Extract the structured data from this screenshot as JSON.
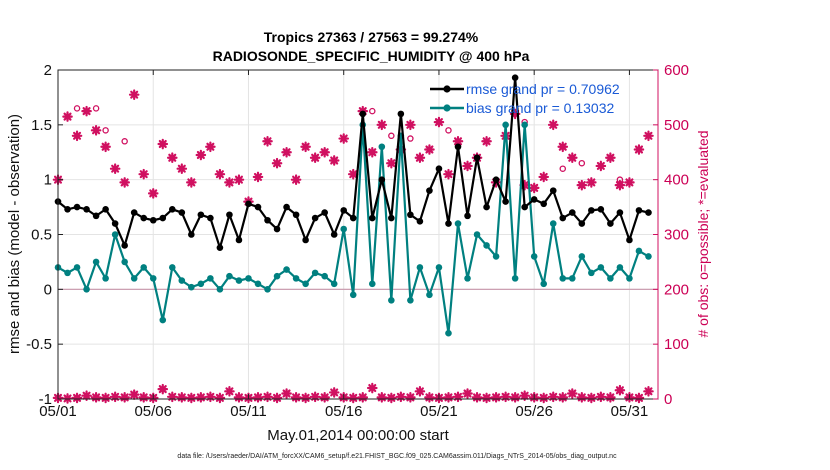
{
  "title_line1": "Tropics 27363 / 27563 = 99.274%",
  "title_line2": "RADIOSONDE_SPECIFIC_HUMIDITY @ 400 hPa",
  "footer": "data file: /Users/raeder/DAI/ATM_forcXX/CAM6_setup/f.e21.FHIST_BGC.f09_025.CAM6assim.011/Diags_NTrS_2014-05/obs_diag_output.nc",
  "colors": {
    "rmse": "#000000",
    "bias": "#008080",
    "obs": "#d01060",
    "zero_line": "#c896aa"
  },
  "chart_data": {
    "type": "line",
    "title": "Tropics 27363 / 27563 = 99.274%\nRADIOSONDE_SPECIFIC_HUMIDITY @ 400 hPa",
    "xlabel": "May.01,2014 00:00:00 start",
    "ylabel": "rmse and bias (model - observation)",
    "y2label": "# of obs: o=possible; *=evaluated",
    "xlim": [
      0,
      31.5
    ],
    "ylim": [
      -1,
      2
    ],
    "y2lim": [
      0,
      600
    ],
    "xticks": [
      0,
      5,
      10,
      15,
      20,
      25,
      30
    ],
    "xticklabels": [
      "05/01",
      "05/06",
      "05/11",
      "05/16",
      "05/21",
      "05/26",
      "05/31"
    ],
    "yticks": [
      -1,
      -0.5,
      0,
      0.5,
      1,
      1.5,
      2
    ],
    "yticklabels": [
      "-1",
      "-0.5",
      "0",
      "0.5",
      "1",
      "1.5",
      "2"
    ],
    "y2ticks": [
      0,
      100,
      200,
      300,
      400,
      500,
      600
    ],
    "y2ticklabels": [
      "0",
      "100",
      "200",
      "300",
      "400",
      "500",
      "600"
    ],
    "legend": {
      "position": "top-right",
      "entries": [
        "rmse grand pr = 0.70962",
        "bias grand pr = 0.13032"
      ]
    },
    "series": [
      {
        "name": "rmse grand pr = 0.70962",
        "x": [
          0,
          0.5,
          1,
          1.5,
          2,
          2.5,
          3,
          3.5,
          4,
          4.5,
          5,
          5.5,
          6,
          6.5,
          7,
          7.5,
          8,
          8.5,
          9,
          9.5,
          10,
          10.5,
          11,
          11.5,
          12,
          12.5,
          13,
          13.5,
          14,
          14.5,
          15,
          15.5,
          16,
          16.5,
          17,
          17.5,
          18,
          18.5,
          19,
          19.5,
          20,
          20.5,
          21,
          21.5,
          22,
          22.5,
          23,
          23.5,
          24,
          24.5,
          25,
          25.5,
          26,
          26.5,
          27,
          27.5,
          28,
          28.5,
          29,
          29.5,
          30,
          30.5,
          31
        ],
        "values": [
          0.8,
          0.73,
          0.75,
          0.73,
          0.67,
          0.73,
          0.6,
          0.4,
          0.7,
          0.65,
          0.63,
          0.65,
          0.73,
          0.7,
          0.5,
          0.68,
          0.65,
          0.38,
          0.68,
          0.45,
          0.78,
          0.75,
          0.63,
          0.55,
          0.75,
          0.68,
          0.45,
          0.65,
          0.7,
          0.5,
          0.72,
          0.65,
          1.6,
          0.65,
          1.0,
          0.65,
          1.6,
          0.68,
          0.62,
          0.9,
          1.1,
          0.6,
          1.3,
          0.67,
          1.2,
          0.75,
          1.0,
          0.8,
          1.93,
          0.75,
          0.82,
          0.78,
          0.9,
          0.65,
          0.7,
          0.6,
          0.72,
          0.73,
          0.6,
          0.7,
          0.45,
          0.72,
          0.7
        ]
      },
      {
        "name": "bias grand pr = 0.13032",
        "x": [
          0,
          0.5,
          1,
          1.5,
          2,
          2.5,
          3,
          3.5,
          4,
          4.5,
          5,
          5.5,
          6,
          6.5,
          7,
          7.5,
          8,
          8.5,
          9,
          9.5,
          10,
          10.5,
          11,
          11.5,
          12,
          12.5,
          13,
          13.5,
          14,
          14.5,
          15,
          15.5,
          16,
          16.5,
          17,
          17.5,
          18,
          18.5,
          19,
          19.5,
          20,
          20.5,
          21,
          21.5,
          22,
          22.5,
          23,
          23.5,
          24,
          24.5,
          25,
          25.5,
          26,
          26.5,
          27,
          27.5,
          28,
          28.5,
          29,
          29.5,
          30,
          30.5,
          31
        ],
        "values": [
          0.2,
          0.15,
          0.2,
          0.0,
          0.25,
          0.1,
          0.5,
          0.25,
          0.1,
          0.2,
          0.1,
          -0.28,
          0.2,
          0.08,
          0.02,
          0.05,
          0.1,
          0.0,
          0.12,
          0.08,
          0.1,
          0.05,
          0.0,
          0.12,
          0.18,
          0.1,
          0.05,
          0.15,
          0.12,
          0.05,
          0.55,
          -0.05,
          1.5,
          0.05,
          1.3,
          -0.1,
          1.4,
          -0.1,
          0.2,
          -0.05,
          0.2,
          -0.4,
          0.6,
          0.1,
          0.5,
          0.4,
          0.3,
          1.5,
          0.1,
          1.5,
          0.3,
          0.05,
          0.6,
          0.1,
          0.1,
          0.3,
          0.15,
          0.2,
          0.1,
          0.2,
          0.1,
          0.35,
          0.3
        ]
      },
      {
        "name": "# of obs evaluated (top)",
        "axis": "right",
        "x": [
          0,
          0.5,
          1,
          1.5,
          2,
          2.5,
          3,
          3.5,
          4,
          4.5,
          5,
          5.5,
          6,
          6.5,
          7,
          7.5,
          8,
          8.5,
          9,
          9.5,
          10,
          10.5,
          11,
          11.5,
          12,
          12.5,
          13,
          13.5,
          14,
          14.5,
          15,
          15.5,
          16,
          16.5,
          17,
          17.5,
          18,
          18.5,
          19,
          19.5,
          20,
          20.5,
          21,
          21.5,
          22,
          22.5,
          23,
          23.5,
          24,
          24.5,
          25,
          25.5,
          26,
          26.5,
          27,
          27.5,
          28,
          28.5,
          29,
          29.5,
          30,
          30.5,
          31
        ],
        "values": [
          400,
          515,
          480,
          525,
          490,
          460,
          420,
          395,
          555,
          410,
          375,
          465,
          440,
          420,
          395,
          445,
          460,
          410,
          395,
          400,
          360,
          405,
          470,
          430,
          450,
          400,
          460,
          440,
          450,
          435,
          475,
          410,
          525,
          450,
          500,
          430,
          455,
          500,
          440,
          455,
          505,
          410,
          470,
          425,
          440,
          470,
          395,
          480,
          520,
          390,
          385,
          405,
          500,
          460,
          440,
          390,
          395,
          425,
          440,
          390,
          395,
          455,
          480
        ]
      },
      {
        "name": "# of obs evaluated (bottom)",
        "axis": "right",
        "x": [
          0,
          0.5,
          1,
          1.5,
          2,
          2.5,
          3,
          3.5,
          4,
          4.5,
          5,
          5.5,
          6,
          6.5,
          7,
          7.5,
          8,
          8.5,
          9,
          9.5,
          10,
          10.5,
          11,
          11.5,
          12,
          12.5,
          13,
          13.5,
          14,
          14.5,
          15,
          15.5,
          16,
          16.5,
          17,
          17.5,
          18,
          18.5,
          19,
          19.5,
          20,
          20.5,
          21,
          21.5,
          22,
          22.5,
          23,
          23.5,
          24,
          24.5,
          25,
          25.5,
          26,
          26.5,
          27,
          27.5,
          28,
          28.5,
          29,
          29.5,
          30,
          30.5,
          31
        ],
        "values": [
          2,
          1,
          2,
          6,
          3,
          2,
          4,
          3,
          8,
          3,
          2,
          18,
          4,
          3,
          2,
          3,
          4,
          2,
          14,
          3,
          2,
          3,
          4,
          2,
          10,
          3,
          2,
          4,
          3,
          12,
          3,
          2,
          3,
          20,
          3,
          2,
          4,
          3,
          14,
          3,
          2,
          3,
          4,
          10,
          3,
          2,
          3,
          4,
          3,
          6,
          3,
          2,
          4,
          3,
          10,
          3,
          2,
          4,
          3,
          16,
          3,
          2,
          14
        ]
      }
    ],
    "obs_possible_markers": {
      "x": [
        1,
        2,
        2.5,
        3.5,
        16.5,
        17.5,
        18.5,
        20.5,
        22,
        24.5,
        26.5,
        27.5,
        29.5
      ],
      "values": [
        530,
        530,
        490,
        470,
        525,
        480,
        475,
        490,
        440,
        505,
        420,
        430,
        400
      ]
    }
  }
}
